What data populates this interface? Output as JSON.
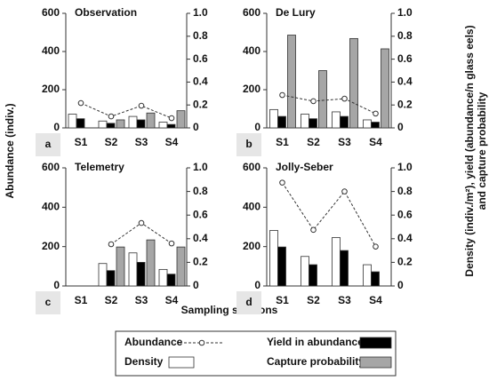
{
  "ylabel": "Abundance (indiv.)",
  "y2label": [
    "Density (indiv./m²), yield (abundance/n glass eels)",
    "and capture probability"
  ],
  "xlabel": "Sampling sessions",
  "chart_data": [
    {
      "type": "bar",
      "title": "Observation",
      "panel_label": "a",
      "categories": [
        "S1",
        "S2",
        "S3",
        "S4"
      ],
      "ylim": [
        0,
        600
      ],
      "yticks": [
        0,
        200,
        400,
        600
      ],
      "y2lim": [
        0,
        1
      ],
      "y2ticks": [
        0,
        0.2,
        0.4,
        0.6,
        0.8,
        {
          "value": 1,
          "label": "1.0"
        }
      ],
      "series": [
        {
          "name": "Abundance",
          "type": "line",
          "color": "#333333",
          "values": [
            130,
            60,
            116,
            51
          ]
        },
        {
          "name": "Density",
          "axis": "y2",
          "color": "#ffffff",
          "values": [
            0.12,
            0.06,
            0.1,
            0.05
          ]
        },
        {
          "name": "Yield in abundance",
          "axis": "y2",
          "color": "#000000",
          "values": [
            0.08,
            0.04,
            0.07,
            0.03
          ]
        },
        {
          "name": "Capture probability",
          "axis": "y2",
          "color": "#a6a6a6",
          "values": [
            null,
            0.07,
            0.13,
            0.15
          ]
        }
      ]
    },
    {
      "type": "bar",
      "title": "De Lury",
      "panel_label": "b",
      "categories": [
        "S1",
        "S2",
        "S3",
        "S4"
      ],
      "ylim": [
        0,
        600
      ],
      "yticks": [
        0,
        200,
        400,
        600
      ],
      "y2lim": [
        0,
        1
      ],
      "y2ticks": [
        0,
        0.2,
        0.4,
        0.6,
        0.8,
        {
          "value": 1,
          "label": "1.0"
        }
      ],
      "series": [
        {
          "name": "Abundance",
          "type": "line",
          "color": "#333333",
          "values": [
            172,
            140,
            153,
            75
          ]
        },
        {
          "name": "Density",
          "axis": "y2",
          "color": "#ffffff",
          "values": [
            0.16,
            0.12,
            0.14,
            0.07
          ]
        },
        {
          "name": "Yield in abundance",
          "axis": "y2",
          "color": "#000000",
          "values": [
            0.1,
            0.08,
            0.1,
            0.05
          ]
        },
        {
          "name": "Capture probability",
          "axis": "y2",
          "color": "#a6a6a6",
          "values": [
            0.81,
            0.5,
            0.78,
            0.69
          ]
        }
      ]
    },
    {
      "type": "bar",
      "title": "Telemetry",
      "panel_label": "c",
      "categories": [
        "S1",
        "S2",
        "S3",
        "S4"
      ],
      "ylim": [
        0,
        600
      ],
      "yticks": [
        0,
        200,
        400,
        600
      ],
      "y2lim": [
        0,
        1
      ],
      "y2ticks": [
        0,
        0.2,
        0.4,
        0.6,
        0.8,
        {
          "value": 1,
          "label": "1.0"
        }
      ],
      "series": [
        {
          "name": "Abundance",
          "type": "line",
          "color": "#333333",
          "values": [
            null,
            212,
            320,
            216
          ]
        },
        {
          "name": "Density",
          "axis": "y2",
          "color": "#ffffff",
          "values": [
            null,
            0.19,
            0.28,
            0.14
          ]
        },
        {
          "name": "Yield in abundance",
          "axis": "y2",
          "color": "#000000",
          "values": [
            null,
            0.13,
            0.2,
            0.1
          ]
        },
        {
          "name": "Capture probability",
          "axis": "y2",
          "color": "#a6a6a6",
          "values": [
            null,
            0.33,
            0.39,
            0.33
          ]
        }
      ]
    },
    {
      "type": "bar",
      "title": "Jolly-Seber",
      "panel_label": "d",
      "categories": [
        "S1",
        "S2",
        "S3",
        "S4"
      ],
      "ylim": [
        0,
        600
      ],
      "yticks": [
        0,
        200,
        400,
        600
      ],
      "y2lim": [
        0,
        1
      ],
      "y2ticks": [
        0,
        0.2,
        0.4,
        0.6,
        0.8,
        {
          "value": 1,
          "label": "1.0"
        }
      ],
      "series": [
        {
          "name": "Abundance",
          "type": "line",
          "color": "#333333",
          "values": [
            525,
            285,
            480,
            200
          ]
        },
        {
          "name": "Density",
          "axis": "y2",
          "color": "#ffffff",
          "values": [
            0.47,
            0.25,
            0.41,
            0.18
          ]
        },
        {
          "name": "Yield in abundance",
          "axis": "y2",
          "color": "#000000",
          "values": [
            0.33,
            0.18,
            0.3,
            0.12
          ]
        }
      ]
    }
  ]
}
